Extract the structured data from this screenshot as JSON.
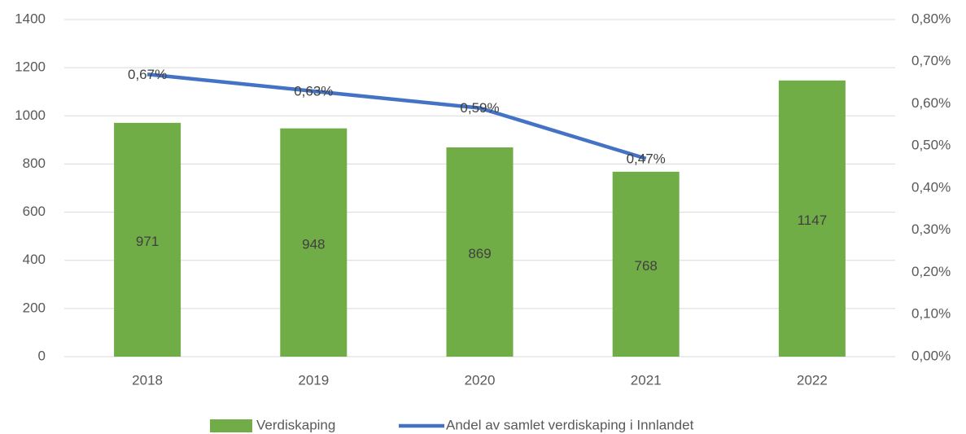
{
  "chart_data": {
    "type": "combo",
    "categories": [
      "2018",
      "2019",
      "2020",
      "2021",
      "2022"
    ],
    "series": [
      {
        "name": "Verdiskaping",
        "type": "bar",
        "color": "#70ad47",
        "values": [
          971,
          948,
          869,
          768,
          1147
        ]
      },
      {
        "name": "Andel av samlet verdiskaping i Innlandet",
        "type": "line",
        "axis": "y2",
        "color": "#4472c4",
        "values": [
          0.67,
          0.63,
          0.59,
          0.47,
          null
        ],
        "value_labels": [
          "0,67%",
          "0,63%",
          "0,59%",
          "0,47%",
          null
        ]
      }
    ],
    "ylim": [
      0,
      1400
    ],
    "yticks": [
      0,
      200,
      400,
      600,
      800,
      1000,
      1200,
      1400
    ],
    "y2lim": [
      0,
      0.8
    ],
    "y2ticks": [
      {
        "value": 0,
        "label": "0,00%"
      },
      {
        "value": 0.1,
        "label": "0,10%"
      },
      {
        "value": 0.2,
        "label": "0,20%"
      },
      {
        "value": 0.3,
        "label": "0,30%"
      },
      {
        "value": 0.4,
        "label": "0,40%"
      },
      {
        "value": 0.5,
        "label": "0,50%"
      },
      {
        "value": 0.6,
        "label": "0,60%"
      },
      {
        "value": 0.7,
        "label": "0,70%"
      },
      {
        "value": 0.8,
        "label": "0,80%"
      }
    ],
    "grid": true,
    "legend": "bottom"
  }
}
